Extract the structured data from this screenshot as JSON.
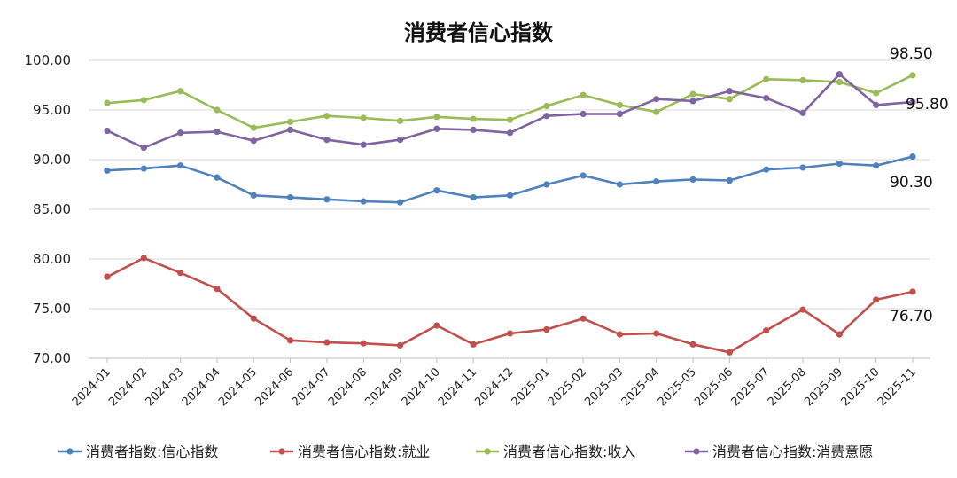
{
  "chart_data": {
    "type": "line",
    "title": "消费者信心指数",
    "xlabel": "",
    "ylabel": "",
    "ylim": [
      70,
      100
    ],
    "yticks": [
      "100.00",
      "95.00",
      "90.00",
      "85.00",
      "80.00",
      "75.00",
      "70.00"
    ],
    "grid": "horizontal",
    "legend_position": "bottom",
    "categories": [
      "2024-01",
      "2024-02",
      "2024-03",
      "2024-04",
      "2024-05",
      "2024-06",
      "2024-07",
      "2024-08",
      "2024-09",
      "2024-10",
      "2024-11",
      "2024-12",
      "2025-01",
      "2025-02",
      "2025-03",
      "2025-04",
      "2025-05",
      "2025-06",
      "2025-07",
      "2025-08",
      "2025-09",
      "2025-10",
      "2025-11"
    ],
    "series": [
      {
        "name": "消费者指数:信心指数",
        "color": "#4f81bd",
        "values": [
          88.9,
          89.1,
          89.4,
          88.2,
          86.4,
          86.2,
          86.0,
          85.8,
          85.7,
          86.9,
          86.2,
          86.4,
          87.5,
          88.4,
          87.5,
          87.8,
          88.0,
          87.9,
          89.0,
          89.2,
          89.6,
          89.4,
          90.3
        ],
        "end_label": "90.30"
      },
      {
        "name": "消费者信心指数:就业",
        "color": "#c0504d",
        "values": [
          78.2,
          80.1,
          78.6,
          77.0,
          74.0,
          71.8,
          71.6,
          71.5,
          71.3,
          73.3,
          71.4,
          72.5,
          72.9,
          74.0,
          72.4,
          72.5,
          71.4,
          70.6,
          72.8,
          74.9,
          72.4,
          75.9,
          76.7
        ],
        "end_label": "76.70"
      },
      {
        "name": "消费者信心指数:收入",
        "color": "#9bbb59",
        "values": [
          95.7,
          96.0,
          96.9,
          95.0,
          93.2,
          93.8,
          94.4,
          94.2,
          93.9,
          94.3,
          94.1,
          94.0,
          95.4,
          96.5,
          95.5,
          94.8,
          96.6,
          96.1,
          98.1,
          98.0,
          97.8,
          96.7,
          98.5
        ],
        "end_label": "98.50"
      },
      {
        "name": "消费者信心指数:消费意愿",
        "color": "#8064a2",
        "values": [
          92.9,
          91.2,
          92.7,
          92.8,
          91.9,
          93.0,
          92.0,
          91.5,
          92.0,
          93.1,
          93.0,
          92.7,
          94.4,
          94.6,
          94.6,
          96.1,
          95.9,
          96.9,
          96.2,
          94.7,
          98.6,
          95.5,
          95.8
        ],
        "end_label": "95.80"
      }
    ]
  }
}
